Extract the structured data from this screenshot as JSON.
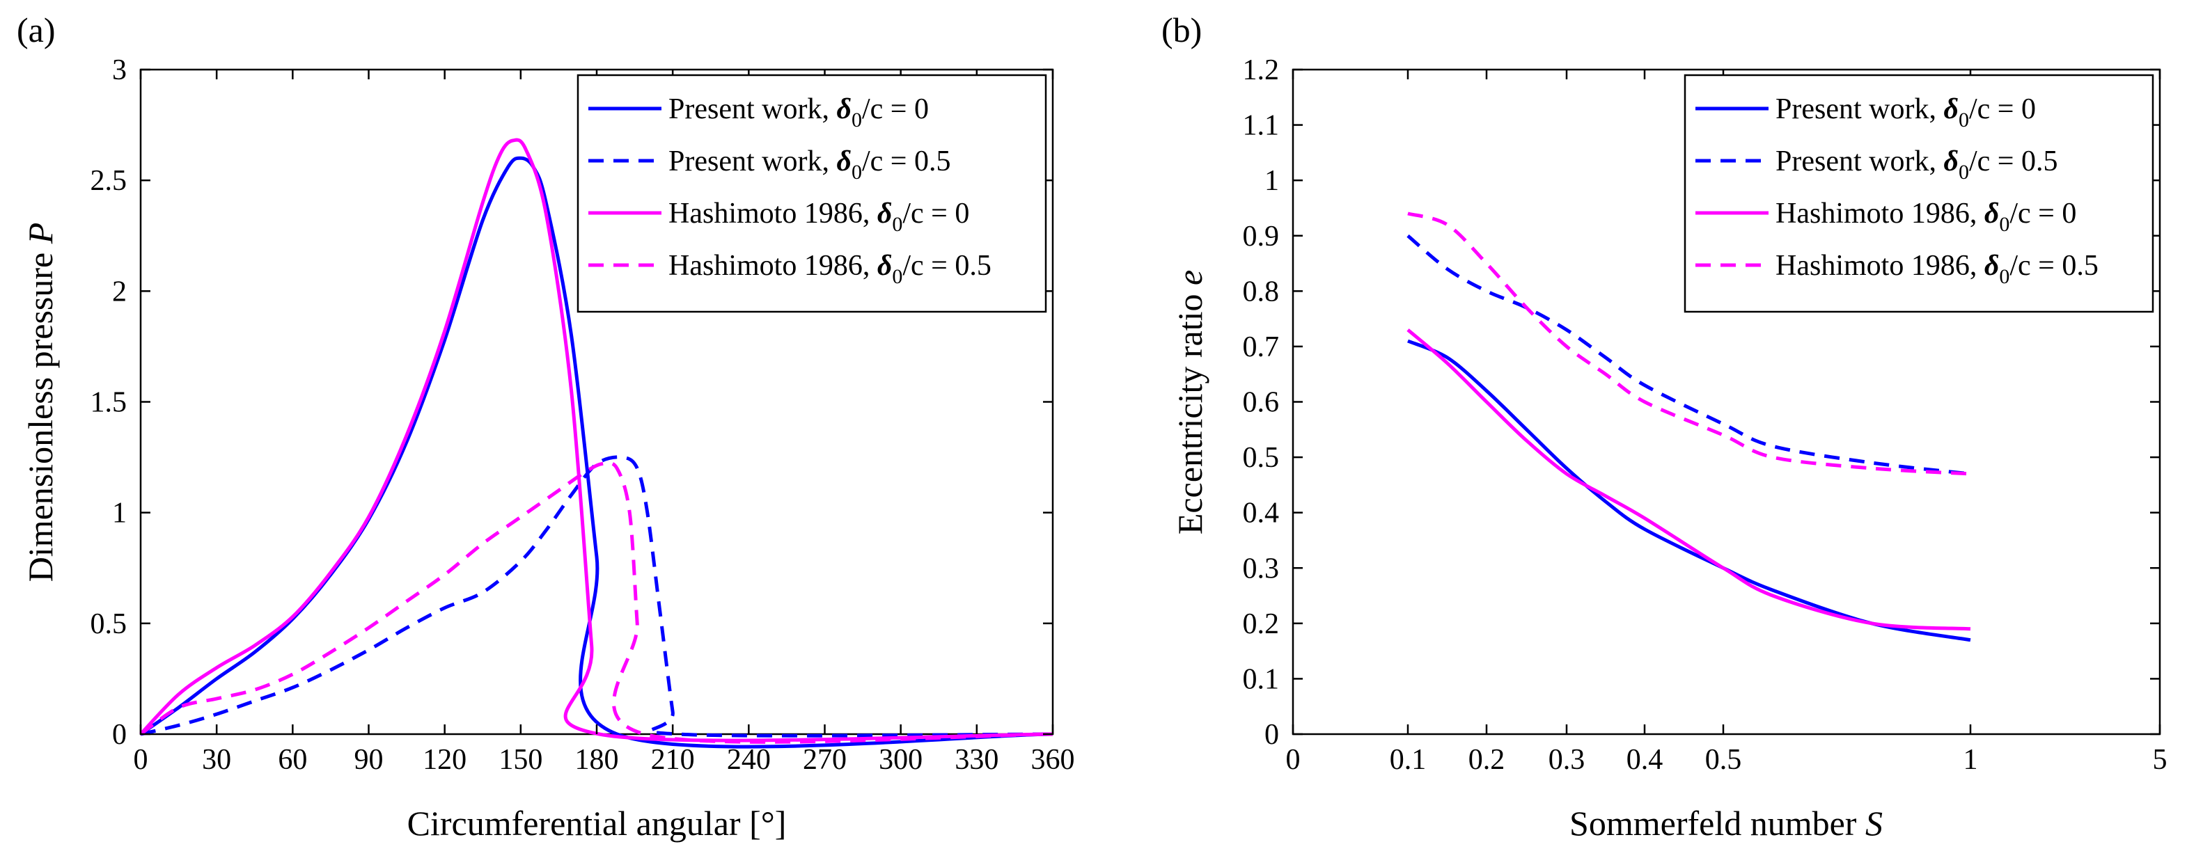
{
  "chart_data": [
    {
      "panel": "(a)",
      "type": "line",
      "xlabel": "Circumferential angular [°]",
      "ylabel_text": "Dimensionless pressure ",
      "ylabel_symbol": "P",
      "xlim": [
        0,
        360
      ],
      "ylim": [
        0,
        3
      ],
      "xticks": [
        0,
        30,
        60,
        90,
        120,
        150,
        180,
        210,
        240,
        270,
        300,
        330,
        360
      ],
      "yticks": [
        0,
        0.5,
        1,
        1.5,
        2,
        2.5,
        3
      ],
      "ytick_labels": [
        "0",
        "0.5",
        "1",
        "1.5",
        "2",
        "2.5",
        "3"
      ],
      "legend_position": "top-right",
      "series": [
        {
          "name": "Present work, δ0/c = 0",
          "label_prefix": "Present work, ",
          "delta_sub": "0",
          "label_suffix": "/c = 0",
          "color": "#0000ff",
          "dash": "solid",
          "x": [
            0,
            15,
            30,
            45,
            60,
            75,
            90,
            105,
            120,
            135,
            145,
            150,
            155,
            160,
            170,
            180,
            188,
            360
          ],
          "y": [
            0,
            0.12,
            0.25,
            0.37,
            0.52,
            0.72,
            0.97,
            1.32,
            1.78,
            2.32,
            2.56,
            2.6,
            2.56,
            2.4,
            1.8,
            0.8,
            0,
            0
          ]
        },
        {
          "name": "Present work, δ0/c = 0.5",
          "label_prefix": "Present work, ",
          "delta_sub": "0",
          "label_suffix": "/c = 0.5",
          "color": "#0000ff",
          "dash": "dashed",
          "x": [
            0,
            15,
            30,
            45,
            60,
            75,
            90,
            105,
            120,
            135,
            150,
            160,
            170,
            180,
            190,
            196,
            200,
            205,
            210,
            212,
            360
          ],
          "y": [
            0,
            0.04,
            0.09,
            0.15,
            0.21,
            0.29,
            0.38,
            0.48,
            0.57,
            0.64,
            0.78,
            0.92,
            1.08,
            1.22,
            1.25,
            1.2,
            1.0,
            0.55,
            0.1,
            0,
            0
          ]
        },
        {
          "name": "Hashimoto 1986, δ0/c = 0",
          "label_prefix": "Hashimoto 1986, ",
          "delta_sub": "0",
          "label_suffix": "/c = 0",
          "color": "#ff00ff",
          "dash": "solid",
          "x": [
            0,
            15,
            30,
            45,
            60,
            75,
            90,
            105,
            120,
            135,
            142,
            147,
            152,
            160,
            170,
            178,
            181,
            360
          ],
          "y": [
            0,
            0.18,
            0.3,
            0.4,
            0.53,
            0.73,
            0.98,
            1.35,
            1.82,
            2.4,
            2.62,
            2.68,
            2.64,
            2.35,
            1.55,
            0.4,
            0,
            0
          ]
        },
        {
          "name": "Hashimoto 1986, δ0/c = 0.5",
          "label_prefix": "Hashimoto 1986, ",
          "delta_sub": "0",
          "label_suffix": "/c = 0.5",
          "color": "#ff00ff",
          "dash": "dashed",
          "x": [
            0,
            15,
            30,
            45,
            60,
            75,
            90,
            105,
            120,
            135,
            150,
            165,
            175,
            182,
            188,
            193,
            196,
            199,
            360
          ],
          "y": [
            0,
            0.12,
            0.16,
            0.2,
            0.27,
            0.37,
            0.48,
            0.6,
            0.72,
            0.86,
            0.98,
            1.1,
            1.18,
            1.22,
            1.2,
            1.0,
            0.5,
            0,
            0
          ]
        }
      ]
    },
    {
      "panel": "(b)",
      "type": "line",
      "xlabel_text": "Sommerfeld number ",
      "xlabel_symbol": "S",
      "ylabel_text": "Eccentricity ratio ",
      "ylabel_symbol": "e",
      "xscale": "nonlinear",
      "xticks": [
        0,
        0.1,
        0.2,
        0.3,
        0.4,
        0.5,
        1,
        5
      ],
      "xtick_labels": [
        "0",
        "0.1",
        "0.2",
        "0.3",
        "0.4",
        "0.5",
        "1",
        "5"
      ],
      "ylim": [
        0,
        1.2
      ],
      "yticks": [
        0,
        0.1,
        0.2,
        0.3,
        0.4,
        0.5,
        0.6,
        0.7,
        0.8,
        0.9,
        1,
        1.1,
        1.2
      ],
      "ytick_labels": [
        "0",
        "0.1",
        "0.2",
        "0.3",
        "0.4",
        "0.5",
        "0.6",
        "0.7",
        "0.8",
        "0.9",
        "1",
        "1.1",
        "1.2"
      ],
      "legend_position": "top-right",
      "series": [
        {
          "name": "Present work, δ0/c = 0",
          "label_prefix": "Present work, ",
          "delta_sub": "0",
          "label_suffix": "/c = 0",
          "color": "#0000ff",
          "dash": "solid",
          "x": [
            0.1,
            0.15,
            0.2,
            0.25,
            0.3,
            0.35,
            0.4,
            0.5,
            0.6,
            0.8,
            1
          ],
          "y": [
            0.71,
            0.68,
            0.62,
            0.55,
            0.48,
            0.42,
            0.37,
            0.3,
            0.26,
            0.2,
            0.17
          ]
        },
        {
          "name": "Present work, δ0/c = 0.5",
          "label_prefix": "Present work, ",
          "delta_sub": "0",
          "label_suffix": "/c = 0.5",
          "color": "#0000ff",
          "dash": "dashed",
          "x": [
            0.1,
            0.15,
            0.2,
            0.25,
            0.3,
            0.35,
            0.4,
            0.5,
            0.6,
            0.8,
            1
          ],
          "y": [
            0.9,
            0.84,
            0.8,
            0.77,
            0.73,
            0.68,
            0.63,
            0.56,
            0.52,
            0.49,
            0.47
          ]
        },
        {
          "name": "Hashimoto 1986, δ0/c = 0",
          "label_prefix": "Hashimoto 1986, ",
          "delta_sub": "0",
          "label_suffix": "/c = 0",
          "color": "#ff00ff",
          "dash": "solid",
          "x": [
            0.1,
            0.15,
            0.2,
            0.25,
            0.3,
            0.35,
            0.4,
            0.5,
            0.6,
            0.8,
            1
          ],
          "y": [
            0.73,
            0.67,
            0.6,
            0.53,
            0.47,
            0.43,
            0.39,
            0.3,
            0.25,
            0.2,
            0.19
          ]
        },
        {
          "name": "Hashimoto 1986, δ0/c = 0.5",
          "label_prefix": "Hashimoto 1986, ",
          "delta_sub": "0",
          "label_suffix": "/c = 0.5",
          "color": "#ff00ff",
          "dash": "dashed",
          "x": [
            0.1,
            0.15,
            0.2,
            0.25,
            0.3,
            0.35,
            0.4,
            0.5,
            0.6,
            0.8,
            1
          ],
          "y": [
            0.94,
            0.92,
            0.85,
            0.77,
            0.7,
            0.65,
            0.6,
            0.54,
            0.5,
            0.48,
            0.47
          ]
        }
      ]
    }
  ]
}
